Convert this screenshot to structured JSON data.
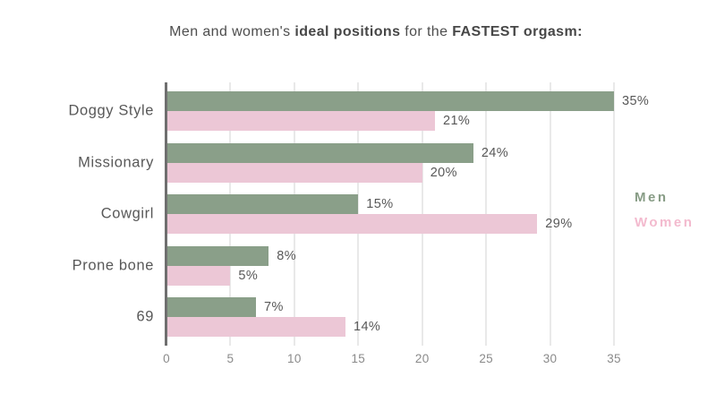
{
  "title": {
    "segments": [
      {
        "text": "Men and women's ",
        "bold": false
      },
      {
        "text": "ideal positions",
        "bold": true
      },
      {
        "text": " for the ",
        "bold": false
      },
      {
        "text": "FASTEST orgasm:",
        "bold": true
      }
    ]
  },
  "legend": {
    "men_label": "Men",
    "women_label": "Women"
  },
  "colors": {
    "men_bar": "#8a9f89",
    "women_bar": "#ecc7d6",
    "men_legend_text": "#879c85",
    "women_legend_text": "#f3bace",
    "axis_line": "#6f6f6f",
    "gridline": "#e9e9e9",
    "title_text": "#4d4d4d",
    "label_text": "#585858",
    "tick_text": "#8a8a8a"
  },
  "chart_data": {
    "type": "bar",
    "orientation": "horizontal",
    "title": "Men and women's ideal positions for the FASTEST orgasm:",
    "categories": [
      "Doggy Style",
      "Missionary",
      "Cowgirl",
      "Prone bone",
      "69"
    ],
    "series": [
      {
        "name": "Men",
        "values": [
          35,
          24,
          15,
          8,
          7
        ],
        "labels": [
          "35%",
          "24%",
          "15%",
          "8%",
          "7%"
        ]
      },
      {
        "name": "Women",
        "values": [
          21,
          20,
          29,
          5,
          14
        ],
        "labels": [
          "21%",
          "20%",
          "29%",
          "5%",
          "14%"
        ]
      }
    ],
    "x_ticks": [
      0,
      5,
      10,
      15,
      20,
      25,
      30,
      35
    ],
    "xlim": [
      0,
      35
    ],
    "grid": true,
    "legend_position": "right"
  }
}
